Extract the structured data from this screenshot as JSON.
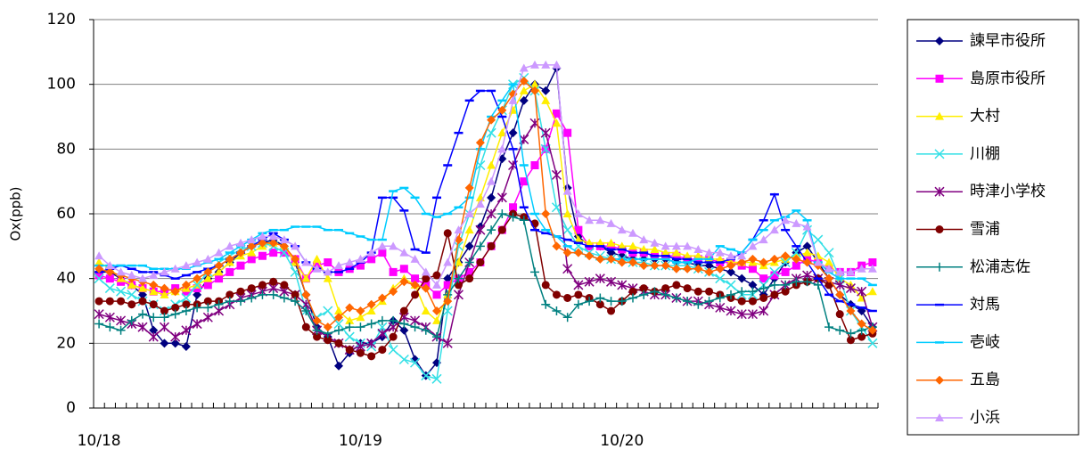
{
  "chart_data": {
    "type": "line",
    "y_label": "Ox(ppb)",
    "categories": [
      "10/18",
      null,
      null,
      null,
      null,
      null,
      null,
      null,
      null,
      null,
      null,
      null,
      null,
      null,
      null,
      null,
      null,
      null,
      null,
      null,
      null,
      null,
      null,
      null,
      "10/19",
      null,
      null,
      null,
      null,
      null,
      null,
      null,
      null,
      null,
      null,
      null,
      null,
      null,
      null,
      null,
      null,
      null,
      null,
      null,
      null,
      null,
      null,
      null,
      "10/20",
      null,
      null,
      null,
      null,
      null,
      null,
      null,
      null,
      null,
      null,
      null,
      null,
      null,
      null,
      null,
      null,
      null,
      null,
      null,
      null,
      null,
      null,
      null
    ],
    "ylim": [
      0,
      120
    ],
    "yticks": [
      0,
      20,
      40,
      60,
      80,
      100,
      120
    ],
    "grid": true,
    "legend": "right",
    "series": [
      {
        "name": "諫早市役所",
        "color": "#000080",
        "marker": "diamond",
        "values": [
          42,
          42,
          40,
          38,
          35,
          24,
          20,
          20,
          19,
          35,
          40,
          42,
          45,
          48,
          50,
          51,
          52,
          50,
          45,
          35,
          25,
          22,
          13,
          17,
          20,
          20,
          22,
          27,
          24,
          15,
          10,
          14,
          40,
          45,
          50,
          56,
          65,
          77,
          85,
          95,
          100,
          98,
          105,
          68,
          53,
          50,
          50,
          48,
          47,
          46,
          46,
          46,
          46,
          45,
          45,
          44,
          44,
          43,
          42,
          40,
          38,
          35,
          40,
          45,
          48,
          50,
          45,
          40,
          35,
          32,
          30,
          25
        ]
      },
      {
        "name": "島原市役所",
        "color": "#ff00ff",
        "marker": "square",
        "values": [
          41,
          40,
          39,
          38,
          37,
          36,
          36,
          37,
          36,
          37,
          38,
          40,
          42,
          44,
          46,
          47,
          48,
          48,
          46,
          40,
          44,
          45,
          42,
          43,
          44,
          46,
          48,
          42,
          43,
          40,
          38,
          35,
          38,
          40,
          42,
          45,
          50,
          55,
          62,
          70,
          75,
          80,
          91,
          85,
          55,
          50,
          50,
          50,
          49,
          48,
          48,
          47,
          47,
          47,
          46,
          46,
          46,
          45,
          45,
          44,
          43,
          40,
          41,
          42,
          44,
          46,
          45,
          43,
          42,
          42,
          44,
          45
        ]
      },
      {
        "name": "大村",
        "color": "#ffee00",
        "marker": "triangle",
        "values": [
          45,
          43,
          40,
          38,
          37,
          36,
          35,
          36,
          37,
          38,
          40,
          42,
          45,
          47,
          48,
          50,
          51,
          50,
          45,
          40,
          46,
          40,
          30,
          27,
          28,
          30,
          33,
          37,
          40,
          38,
          30,
          27,
          35,
          45,
          55,
          65,
          75,
          85,
          92,
          98,
          100,
          95,
          88,
          60,
          52,
          51,
          51,
          51,
          50,
          50,
          49,
          49,
          48,
          48,
          47,
          47,
          46,
          46,
          45,
          45,
          45,
          44,
          45,
          46,
          47,
          48,
          47,
          45,
          40,
          38,
          34,
          36
        ]
      },
      {
        "name": "川棚",
        "color": "#33e0e6",
        "marker": "x",
        "values": [
          40,
          37,
          36,
          35,
          33,
          32,
          30,
          32,
          34,
          38,
          42,
          45,
          47,
          49,
          50,
          51,
          50,
          48,
          42,
          30,
          28,
          30,
          26,
          22,
          20,
          19,
          25,
          18,
          15,
          14,
          10,
          9,
          30,
          50,
          60,
          75,
          85,
          92,
          100,
          102,
          98,
          80,
          62,
          55,
          50,
          48,
          47,
          46,
          46,
          45,
          45,
          44,
          44,
          44,
          44,
          43,
          42,
          40,
          38,
          35,
          35,
          38,
          42,
          45,
          48,
          55,
          52,
          48,
          40,
          30,
          25,
          20
        ]
      },
      {
        "name": "時津小学校",
        "color": "#800080",
        "marker": "star",
        "values": [
          29,
          28,
          27,
          26,
          25,
          22,
          25,
          22,
          24,
          26,
          28,
          30,
          32,
          34,
          35,
          36,
          37,
          36,
          35,
          32,
          24,
          22,
          20,
          18,
          19,
          20,
          23,
          25,
          28,
          27,
          25,
          22,
          20,
          35,
          45,
          55,
          60,
          65,
          75,
          83,
          88,
          85,
          72,
          43,
          38,
          39,
          40,
          39,
          38,
          37,
          36,
          35,
          35,
          34,
          33,
          33,
          32,
          31,
          30,
          29,
          29,
          30,
          35,
          38,
          40,
          41,
          40,
          39,
          38,
          37,
          36,
          25
        ]
      },
      {
        "name": "雪浦",
        "color": "#800000",
        "marker": "circle",
        "values": [
          33,
          33,
          33,
          32,
          33,
          32,
          30,
          31,
          32,
          32,
          33,
          33,
          35,
          36,
          37,
          38,
          39,
          38,
          35,
          25,
          22,
          21,
          20,
          18,
          17,
          16,
          18,
          22,
          30,
          35,
          40,
          41,
          54,
          38,
          40,
          45,
          50,
          55,
          60,
          59,
          57,
          38,
          35,
          34,
          35,
          34,
          32,
          30,
          33,
          36,
          37,
          36,
          37,
          38,
          37,
          36,
          36,
          35,
          34,
          33,
          33,
          34,
          35,
          36,
          38,
          39,
          40,
          38,
          29,
          21,
          22,
          23
        ]
      },
      {
        "name": "松浦志佐",
        "color": "#008080",
        "marker": "plus",
        "values": [
          26,
          25,
          24,
          27,
          29,
          28,
          28,
          29,
          30,
          31,
          31,
          32,
          33,
          33,
          34,
          35,
          35,
          34,
          33,
          30,
          24,
          23,
          24,
          25,
          25,
          26,
          27,
          27,
          26,
          25,
          24,
          22,
          35,
          40,
          45,
          50,
          55,
          60,
          59,
          58,
          42,
          32,
          30,
          28,
          32,
          33,
          34,
          33,
          33,
          34,
          35,
          36,
          35,
          34,
          33,
          32,
          33,
          34,
          35,
          36,
          36,
          37,
          38,
          38,
          39,
          39,
          38,
          25,
          24,
          23,
          24,
          25
        ]
      },
      {
        "name": "対馬",
        "color": "#0000ff",
        "marker": "dash",
        "values": [
          42,
          43,
          44,
          43,
          42,
          42,
          41,
          40,
          41,
          42,
          43,
          44,
          46,
          48,
          50,
          52,
          54,
          52,
          50,
          45,
          43,
          42,
          42,
          43,
          45,
          48,
          65,
          65,
          61,
          49,
          48,
          65,
          75,
          85,
          95,
          98,
          98,
          90,
          80,
          62,
          55,
          54,
          53,
          52,
          51,
          50,
          50,
          49,
          49,
          48,
          48,
          47,
          47,
          46,
          46,
          45,
          45,
          45,
          46,
          48,
          52,
          58,
          66,
          55,
          50,
          45,
          40,
          35,
          33,
          32,
          31,
          30
        ]
      },
      {
        "name": "壱岐",
        "color": "#00ccff",
        "marker": "dash",
        "values": [
          44,
          44,
          44,
          44,
          44,
          43,
          43,
          43,
          43,
          44,
          45,
          46,
          48,
          50,
          52,
          54,
          55,
          55,
          56,
          56,
          56,
          55,
          55,
          54,
          53,
          52,
          52,
          67,
          68,
          65,
          60,
          59,
          60,
          62,
          65,
          80,
          90,
          95,
          100,
          75,
          60,
          55,
          53,
          50,
          48,
          47,
          46,
          46,
          46,
          46,
          46,
          46,
          46,
          45,
          45,
          46,
          46,
          50,
          49,
          48,
          52,
          55,
          58,
          59,
          61,
          58,
          45,
          42,
          40,
          40,
          40,
          38
        ]
      },
      {
        "name": "五島",
        "color": "#ff6600",
        "marker": "diamond",
        "values": [
          43,
          42,
          41,
          40,
          39,
          38,
          37,
          36,
          38,
          40,
          42,
          44,
          46,
          48,
          50,
          51,
          51,
          50,
          46,
          35,
          27,
          25,
          28,
          31,
          30,
          32,
          34,
          36,
          39,
          38,
          37,
          30,
          33,
          52,
          68,
          82,
          89,
          92,
          97,
          101,
          98,
          60,
          50,
          48,
          48,
          47,
          46,
          46,
          45,
          45,
          44,
          44,
          44,
          43,
          43,
          43,
          42,
          43,
          44,
          45,
          46,
          45,
          46,
          47,
          46,
          45,
          44,
          40,
          35,
          30,
          26,
          24
        ]
      },
      {
        "name": "小浜",
        "color": "#cc99ff",
        "marker": "triangle",
        "values": [
          47,
          44,
          42,
          41,
          40,
          41,
          42,
          43,
          44,
          45,
          46,
          48,
          50,
          51,
          52,
          53,
          53,
          52,
          50,
          45,
          43,
          42,
          44,
          45,
          46,
          48,
          50,
          50,
          48,
          46,
          42,
          38,
          45,
          55,
          60,
          63,
          70,
          80,
          95,
          105,
          106,
          106,
          106,
          67,
          60,
          58,
          58,
          57,
          55,
          54,
          52,
          51,
          50,
          50,
          50,
          49,
          48,
          48,
          47,
          47,
          50,
          52,
          55,
          58,
          57,
          56,
          45,
          43,
          42,
          42,
          43,
          43
        ]
      }
    ]
  }
}
